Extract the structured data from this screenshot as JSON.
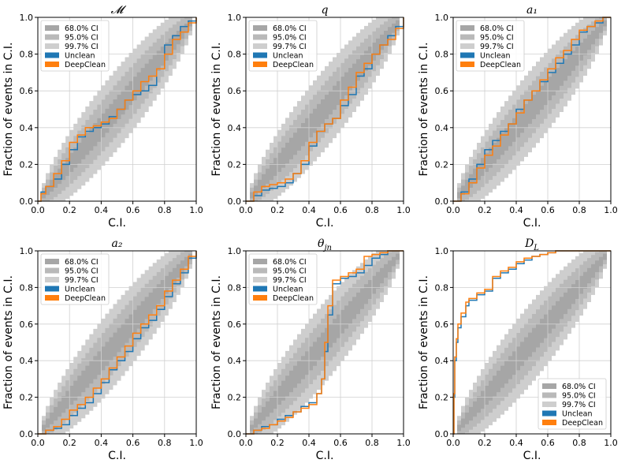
{
  "figure": {
    "panel_count": 6,
    "layout": "2x3"
  },
  "legend_labels": [
    "68.0% CI",
    "95.0% CI",
    "99.7% CI",
    "Unclean",
    "DeepClean"
  ],
  "colors": {
    "band_68": "#a6a6a6",
    "band_95": "#b9b9b9",
    "band_997": "#cecece",
    "unclean": "#1f77b4",
    "deepclean": "#ff7f0e",
    "grid": "#d0d0d0"
  },
  "chart_data": [
    {
      "type": "line",
      "title": "𝓜",
      "xlabel": "C.I.",
      "ylabel": "Fraction of events in C.I.",
      "xlim": [
        0,
        1
      ],
      "ylim": [
        0,
        1
      ],
      "xticks": [
        "0.0",
        "0.2",
        "0.4",
        "0.6",
        "0.8",
        "1.0"
      ],
      "yticks": [
        "0.0",
        "0.2",
        "0.4",
        "0.6",
        "0.8",
        "1.0"
      ],
      "grid": true,
      "legend_position": "upper-left",
      "series": [
        {
          "name": "Unclean",
          "x": [
            0,
            0.02,
            0.05,
            0.1,
            0.15,
            0.2,
            0.25,
            0.3,
            0.35,
            0.4,
            0.45,
            0.5,
            0.55,
            0.6,
            0.65,
            0.7,
            0.75,
            0.8,
            0.85,
            0.9,
            0.95,
            1.0
          ],
          "y": [
            0,
            0.05,
            0.08,
            0.12,
            0.2,
            0.28,
            0.35,
            0.38,
            0.4,
            0.42,
            0.46,
            0.5,
            0.55,
            0.58,
            0.6,
            0.63,
            0.72,
            0.85,
            0.9,
            0.95,
            0.98,
            1.0
          ]
        },
        {
          "name": "DeepClean",
          "x": [
            0,
            0.02,
            0.05,
            0.1,
            0.15,
            0.2,
            0.25,
            0.3,
            0.35,
            0.4,
            0.45,
            0.5,
            0.55,
            0.6,
            0.65,
            0.7,
            0.75,
            0.8,
            0.85,
            0.9,
            0.95,
            1.0
          ],
          "y": [
            0,
            0.04,
            0.08,
            0.15,
            0.22,
            0.32,
            0.36,
            0.4,
            0.41,
            0.43,
            0.45,
            0.5,
            0.55,
            0.6,
            0.65,
            0.68,
            0.72,
            0.8,
            0.88,
            0.92,
            0.97,
            1.0
          ]
        }
      ]
    },
    {
      "type": "line",
      "title": "q",
      "xlabel": "C.I.",
      "ylabel": "Fraction of events in C.I.",
      "xlim": [
        0,
        1
      ],
      "ylim": [
        0,
        1
      ],
      "xticks": [
        "0.0",
        "0.2",
        "0.4",
        "0.6",
        "0.8",
        "1.0"
      ],
      "yticks": [
        "0.0",
        "0.2",
        "0.4",
        "0.6",
        "0.8",
        "1.0"
      ],
      "grid": true,
      "legend_position": "upper-left",
      "series": [
        {
          "name": "Unclean",
          "x": [
            0,
            0.05,
            0.1,
            0.15,
            0.2,
            0.25,
            0.3,
            0.35,
            0.4,
            0.45,
            0.5,
            0.55,
            0.6,
            0.65,
            0.7,
            0.75,
            0.8,
            0.85,
            0.9,
            0.95,
            1.0
          ],
          "y": [
            0,
            0.03,
            0.06,
            0.07,
            0.08,
            0.1,
            0.15,
            0.2,
            0.3,
            0.38,
            0.42,
            0.45,
            0.52,
            0.58,
            0.68,
            0.72,
            0.8,
            0.85,
            0.9,
            0.95,
            1.0
          ]
        },
        {
          "name": "DeepClean",
          "x": [
            0,
            0.05,
            0.1,
            0.15,
            0.2,
            0.25,
            0.3,
            0.35,
            0.4,
            0.45,
            0.5,
            0.55,
            0.6,
            0.65,
            0.7,
            0.75,
            0.8,
            0.85,
            0.9,
            0.95,
            1.0
          ],
          "y": [
            0,
            0.05,
            0.08,
            0.09,
            0.1,
            0.12,
            0.15,
            0.22,
            0.32,
            0.38,
            0.42,
            0.45,
            0.55,
            0.62,
            0.7,
            0.75,
            0.8,
            0.85,
            0.88,
            0.94,
            1.0
          ]
        }
      ]
    },
    {
      "type": "line",
      "title": "a₁",
      "xlabel": "C.I.",
      "ylabel": "Fraction of events in C.I.",
      "xlim": [
        0,
        1
      ],
      "ylim": [
        0,
        1
      ],
      "xticks": [
        "0.0",
        "0.2",
        "0.4",
        "0.6",
        "0.8",
        "1.0"
      ],
      "yticks": [
        "0.0",
        "0.2",
        "0.4",
        "0.6",
        "0.8",
        "1.0"
      ],
      "grid": true,
      "legend_position": "upper-left",
      "series": [
        {
          "name": "Unclean",
          "x": [
            0,
            0.05,
            0.1,
            0.15,
            0.2,
            0.25,
            0.3,
            0.35,
            0.4,
            0.45,
            0.5,
            0.55,
            0.6,
            0.65,
            0.7,
            0.75,
            0.8,
            0.85,
            0.9,
            0.95,
            1.0
          ],
          "y": [
            0,
            0.05,
            0.12,
            0.2,
            0.28,
            0.33,
            0.38,
            0.42,
            0.5,
            0.55,
            0.6,
            0.65,
            0.7,
            0.75,
            0.8,
            0.85,
            0.92,
            0.95,
            0.97,
            1.0,
            1.0
          ]
        },
        {
          "name": "DeepClean",
          "x": [
            0,
            0.05,
            0.1,
            0.15,
            0.2,
            0.25,
            0.3,
            0.35,
            0.4,
            0.45,
            0.5,
            0.55,
            0.6,
            0.65,
            0.7,
            0.75,
            0.8,
            0.85,
            0.9,
            0.95,
            1.0
          ],
          "y": [
            0,
            0.04,
            0.1,
            0.18,
            0.25,
            0.3,
            0.36,
            0.42,
            0.48,
            0.55,
            0.6,
            0.66,
            0.72,
            0.78,
            0.82,
            0.88,
            0.93,
            0.95,
            0.98,
            1.0,
            1.0
          ]
        }
      ]
    },
    {
      "type": "line",
      "title": "a₂",
      "xlabel": "C.I.",
      "ylabel": "Fraction of events in C.I.",
      "xlim": [
        0,
        1
      ],
      "ylim": [
        0,
        1
      ],
      "xticks": [
        "0.0",
        "0.2",
        "0.4",
        "0.6",
        "0.8",
        "1.0"
      ],
      "yticks": [
        "0.0",
        "0.2",
        "0.4",
        "0.6",
        "0.8",
        "1.0"
      ],
      "grid": true,
      "legend_position": "upper-left",
      "series": [
        {
          "name": "Unclean",
          "x": [
            0,
            0.05,
            0.1,
            0.15,
            0.2,
            0.25,
            0.3,
            0.35,
            0.4,
            0.45,
            0.5,
            0.55,
            0.6,
            0.65,
            0.7,
            0.75,
            0.8,
            0.85,
            0.9,
            0.95,
            1.0
          ],
          "y": [
            0,
            0.02,
            0.03,
            0.05,
            0.1,
            0.14,
            0.17,
            0.22,
            0.28,
            0.35,
            0.4,
            0.45,
            0.52,
            0.58,
            0.62,
            0.68,
            0.75,
            0.82,
            0.88,
            0.96,
            1.0
          ]
        },
        {
          "name": "DeepClean",
          "x": [
            0,
            0.05,
            0.1,
            0.15,
            0.2,
            0.25,
            0.3,
            0.35,
            0.4,
            0.45,
            0.5,
            0.55,
            0.6,
            0.65,
            0.7,
            0.75,
            0.8,
            0.85,
            0.9,
            0.95,
            1.0
          ],
          "y": [
            0,
            0.02,
            0.04,
            0.08,
            0.13,
            0.16,
            0.2,
            0.25,
            0.3,
            0.36,
            0.42,
            0.48,
            0.55,
            0.6,
            0.65,
            0.7,
            0.78,
            0.84,
            0.9,
            0.97,
            1.0
          ]
        }
      ]
    },
    {
      "type": "line",
      "title": "θ_jn",
      "xlabel": "C.I.",
      "ylabel": "Fraction of events in C.I.",
      "xlim": [
        0,
        1
      ],
      "ylim": [
        0,
        1
      ],
      "xticks": [
        "0.0",
        "0.2",
        "0.4",
        "0.6",
        "0.8",
        "1.0"
      ],
      "yticks": [
        "0.0",
        "0.2",
        "0.4",
        "0.6",
        "0.8",
        "1.0"
      ],
      "grid": true,
      "legend_position": "upper-left",
      "series": [
        {
          "name": "Unclean",
          "x": [
            0,
            0.05,
            0.1,
            0.15,
            0.2,
            0.25,
            0.3,
            0.35,
            0.4,
            0.45,
            0.48,
            0.5,
            0.52,
            0.55,
            0.6,
            0.65,
            0.7,
            0.75,
            0.8,
            0.85,
            0.9,
            0.95,
            1.0
          ],
          "y": [
            0,
            0.02,
            0.04,
            0.05,
            0.08,
            0.1,
            0.12,
            0.15,
            0.17,
            0.22,
            0.3,
            0.45,
            0.65,
            0.82,
            0.85,
            0.86,
            0.88,
            0.92,
            0.96,
            0.98,
            1.0,
            1.0,
            1.0
          ]
        },
        {
          "name": "DeepClean",
          "x": [
            0,
            0.05,
            0.1,
            0.15,
            0.2,
            0.25,
            0.3,
            0.35,
            0.4,
            0.45,
            0.48,
            0.5,
            0.52,
            0.55,
            0.6,
            0.65,
            0.7,
            0.75,
            0.8,
            0.85,
            0.9,
            0.95,
            1.0
          ],
          "y": [
            0,
            0.02,
            0.03,
            0.05,
            0.07,
            0.09,
            0.12,
            0.14,
            0.16,
            0.22,
            0.3,
            0.5,
            0.7,
            0.84,
            0.86,
            0.88,
            0.9,
            0.97,
            0.98,
            0.99,
            1.0,
            1.0,
            1.0
          ]
        }
      ]
    },
    {
      "type": "line",
      "title": "D_L",
      "xlabel": "C.I.",
      "ylabel": "Fraction of events in C.I.",
      "xlim": [
        0,
        1
      ],
      "ylim": [
        0,
        1
      ],
      "xticks": [
        "0.0",
        "0.2",
        "0.4",
        "0.6",
        "0.8",
        "1.0"
      ],
      "yticks": [
        "0.0",
        "0.2",
        "0.4",
        "0.6",
        "0.8",
        "1.0"
      ],
      "grid": true,
      "legend_position": "lower-right",
      "series": [
        {
          "name": "Unclean",
          "x": [
            0,
            0.005,
            0.01,
            0.02,
            0.03,
            0.05,
            0.08,
            0.1,
            0.15,
            0.2,
            0.25,
            0.3,
            0.35,
            0.4,
            0.45,
            0.5,
            0.55,
            0.6,
            0.65,
            0.7,
            1.0
          ],
          "y": [
            0,
            0.2,
            0.4,
            0.5,
            0.58,
            0.64,
            0.7,
            0.73,
            0.76,
            0.78,
            0.85,
            0.88,
            0.9,
            0.93,
            0.95,
            0.97,
            0.98,
            0.99,
            1.0,
            1.0,
            1.0
          ]
        },
        {
          "name": "DeepClean",
          "x": [
            0,
            0.005,
            0.01,
            0.02,
            0.03,
            0.05,
            0.08,
            0.1,
            0.15,
            0.2,
            0.25,
            0.3,
            0.35,
            0.4,
            0.45,
            0.5,
            0.55,
            0.6,
            0.65,
            0.7,
            1.0
          ],
          "y": [
            0,
            0.22,
            0.42,
            0.52,
            0.6,
            0.66,
            0.72,
            0.74,
            0.77,
            0.79,
            0.86,
            0.89,
            0.91,
            0.94,
            0.96,
            0.97,
            0.98,
            0.99,
            1.0,
            1.0,
            1.0
          ]
        }
      ]
    }
  ]
}
